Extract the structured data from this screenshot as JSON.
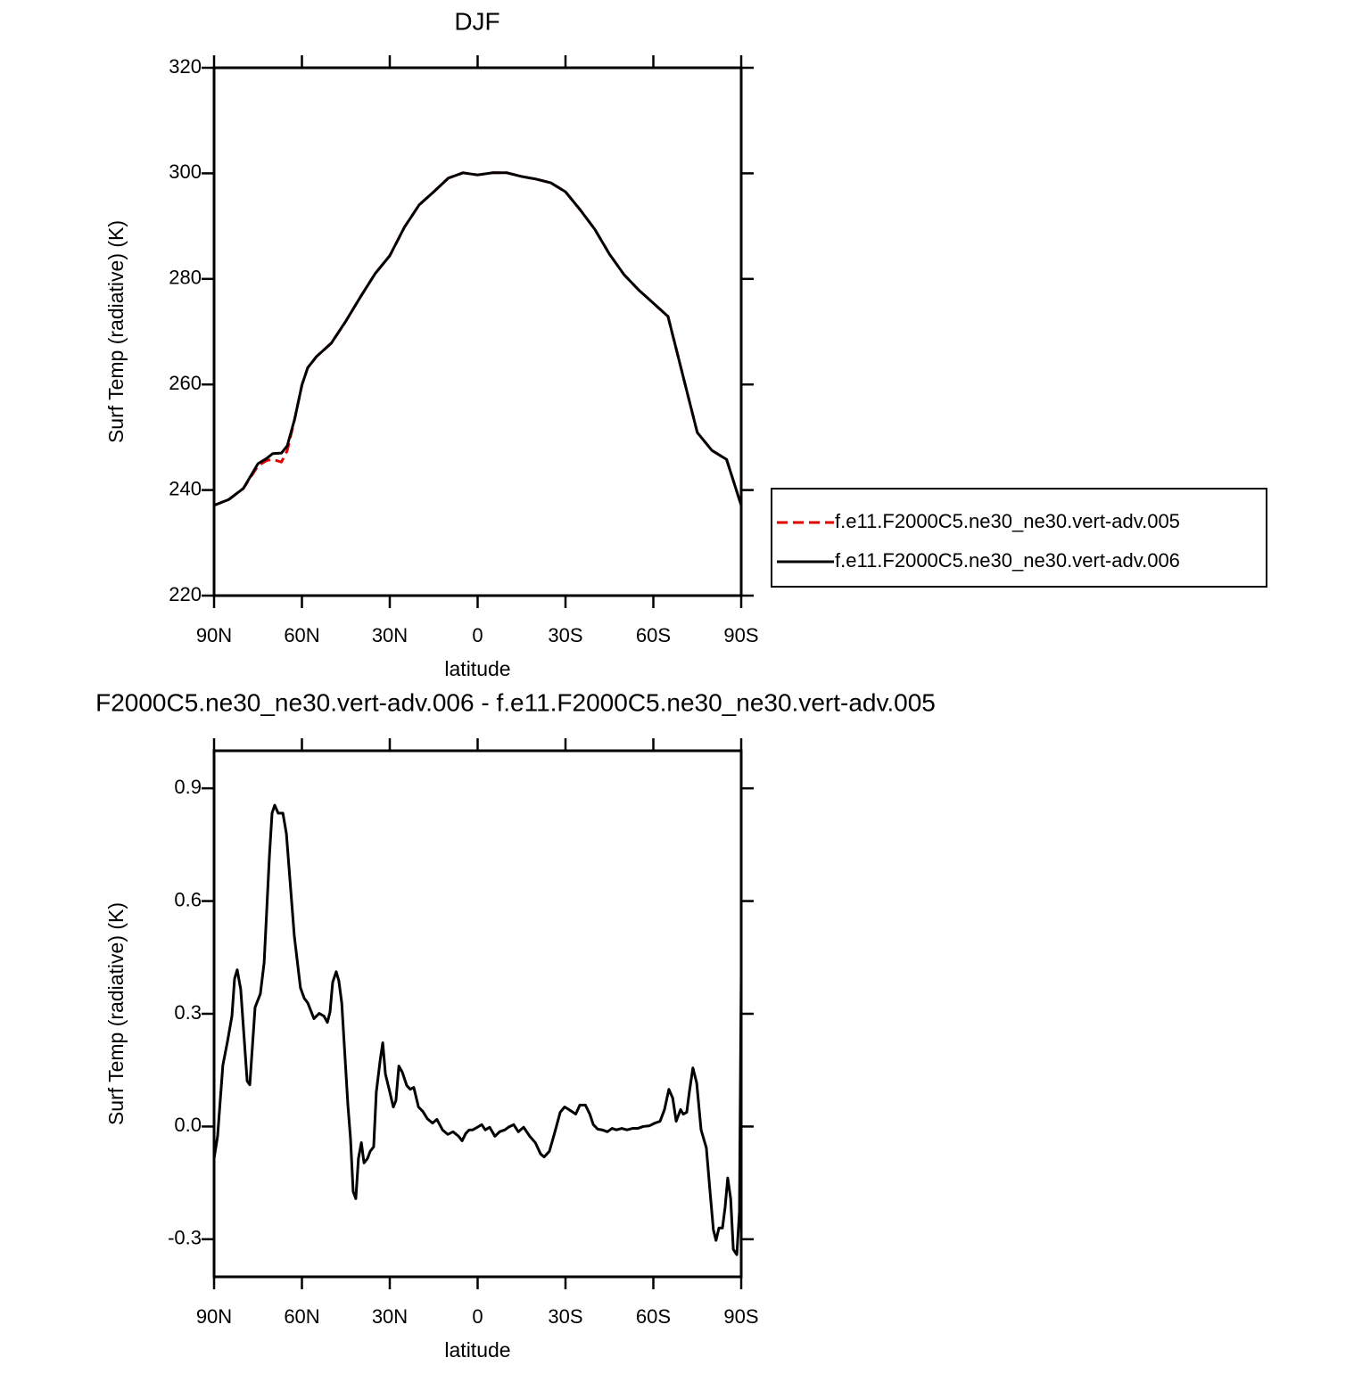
{
  "chart_data": [
    {
      "type": "line",
      "title": "DJF",
      "y_label": "Surf Temp (radiative) (K)",
      "x_label": "latitude",
      "x": [
        90,
        85,
        80,
        75,
        72,
        70,
        67,
        65,
        62.5,
        60,
        58,
        55,
        50,
        45,
        40,
        35,
        30,
        25,
        20,
        15,
        10,
        5,
        0,
        -5,
        -10,
        -15,
        -20,
        -25,
        -30,
        -35,
        -40,
        -45,
        -50,
        -55,
        -60,
        -65,
        -70,
        -75,
        -80,
        -85,
        -90
      ],
      "series": [
        {
          "name": "f.e11.F2000C5.ne30_ne30.vert-adv.005",
          "color": "#e00000",
          "line_style": "dashed",
          "values": [
            237.1,
            238.2,
            240.3,
            244.6,
            245.6,
            245.8,
            245.3,
            247.5,
            253.4,
            259.9,
            263.2,
            265.3,
            267.8,
            272.0,
            276.6,
            281.0,
            284.4,
            289.8,
            294.0,
            296.5,
            299.1,
            300.1,
            299.7,
            300.1,
            300.1,
            299.4,
            298.9,
            298.2,
            296.5,
            293.1,
            289.4,
            284.7,
            280.8,
            277.9,
            275.4,
            272.9,
            261.9,
            250.9,
            247.5,
            245.8,
            237.1
          ]
        },
        {
          "name": "f.e11.F2000C5.ne30_ne30.vert-adv.006",
          "color": "#000000",
          "line_style": "solid",
          "values": [
            237.1,
            238.2,
            240.3,
            245.0,
            246.0,
            246.9,
            247.0,
            248.4,
            253.4,
            259.9,
            263.2,
            265.3,
            267.8,
            272.0,
            276.6,
            281.0,
            284.4,
            289.8,
            294.0,
            296.5,
            299.1,
            300.1,
            299.7,
            300.1,
            300.1,
            299.4,
            298.9,
            298.2,
            296.5,
            293.1,
            289.4,
            284.7,
            280.8,
            277.9,
            275.4,
            272.9,
            261.9,
            250.9,
            247.5,
            245.8,
            237.1
          ]
        }
      ],
      "xlim": [
        90,
        -90
      ],
      "xticks": [
        {
          "value": 90,
          "label": "90N"
        },
        {
          "value": 60,
          "label": "60N"
        },
        {
          "value": 30,
          "label": "30N"
        },
        0,
        {
          "value": -30,
          "label": "30S"
        },
        {
          "value": -60,
          "label": "60S"
        },
        {
          "value": -90,
          "label": "90S"
        }
      ],
      "ylim": [
        220,
        320
      ],
      "yticks": [
        220,
        240,
        260,
        280,
        300,
        320
      ],
      "legend": "right"
    },
    {
      "type": "line",
      "title": "F2000C5.ne30_ne30.vert-adv.006 - f.e11.F2000C5.ne30_ne30.vert-adv.005",
      "y_label": "Surf Temp (radiative) (K)",
      "x_label": "latitude",
      "x": [
        90,
        88.8,
        87.0,
        85.4,
        83.9,
        83.0,
        82.1,
        80.9,
        78.7,
        77.8,
        76.0,
        74.2,
        72.9,
        71.1,
        70.2,
        69.3,
        68.1,
        66.5,
        65.3,
        62.6,
        60.5,
        59.2,
        58.0,
        55.9,
        54.1,
        52.5,
        51.3,
        50.4,
        49.5,
        48.3,
        47.4,
        46.4,
        44.3,
        43.4,
        42.5,
        41.6,
        40.7,
        39.7,
        38.8,
        37.6,
        36.7,
        35.5,
        34.6,
        33.3,
        32.4,
        31.5,
        30.0,
        28.8,
        27.9,
        26.9,
        25.7,
        24.2,
        23.0,
        21.8,
        20.2,
        18.7,
        17.2,
        15.4,
        13.9,
        12.0,
        10.2,
        8.4,
        6.5,
        5.3,
        4.1,
        2.9,
        1.7,
        0.1,
        -1.4,
        -2.6,
        -4.1,
        -5.9,
        -7.5,
        -9.3,
        -10.5,
        -12.3,
        -13.9,
        -15.7,
        -17.8,
        -19.7,
        -21.5,
        -22.7,
        -24.5,
        -26.4,
        -28.2,
        -29.7,
        -31.2,
        -33.5,
        -34.9,
        -36.8,
        -38.3,
        -39.5,
        -41.0,
        -42.5,
        -44.3,
        -45.9,
        -47.4,
        -49.2,
        -51.0,
        -52.9,
        -54.7,
        -56.5,
        -58.7,
        -60.5,
        -62.3,
        -63.8,
        -65.3,
        -66.6,
        -67.8,
        -69.3,
        -70.2,
        -71.4,
        -72.3,
        -73.5,
        -74.8,
        -76.3,
        -78.1,
        -79.3,
        -80.5,
        -81.4,
        -82.4,
        -83.6,
        -84.5,
        -85.4,
        -86.4,
        -87.3,
        -88.5,
        -89.4,
        -90
      ],
      "series": [
        {
          "color": "#000000",
          "line_style": "solid",
          "values": [
            -0.085,
            -0.026,
            0.163,
            0.227,
            0.294,
            0.393,
            0.417,
            0.365,
            0.121,
            0.111,
            0.317,
            0.353,
            0.436,
            0.72,
            0.834,
            0.855,
            0.834,
            0.834,
            0.779,
            0.507,
            0.369,
            0.341,
            0.329,
            0.287,
            0.301,
            0.294,
            0.277,
            0.305,
            0.384,
            0.412,
            0.388,
            0.329,
            0.057,
            -0.033,
            -0.173,
            -0.192,
            -0.085,
            -0.043,
            -0.097,
            -0.085,
            -0.066,
            -0.054,
            0.092,
            0.175,
            0.223,
            0.14,
            0.092,
            0.052,
            0.069,
            0.161,
            0.144,
            0.109,
            0.099,
            0.104,
            0.052,
            0.04,
            0.021,
            0.009,
            0.019,
            -0.009,
            -0.021,
            -0.014,
            -0.026,
            -0.038,
            -0.019,
            -0.009,
            -0.009,
            -0.002,
            0.005,
            -0.009,
            -0.002,
            -0.026,
            -0.014,
            -0.009,
            -0.002,
            0.005,
            -0.014,
            -0.002,
            -0.026,
            -0.043,
            -0.073,
            -0.081,
            -0.066,
            -0.014,
            0.038,
            0.052,
            0.045,
            0.033,
            0.057,
            0.057,
            0.033,
            0.005,
            -0.007,
            -0.009,
            -0.014,
            -0.005,
            -0.009,
            -0.005,
            -0.009,
            -0.005,
            -0.005,
            0,
            0.002,
            0.009,
            0.014,
            0.045,
            0.099,
            0.076,
            0.014,
            0.045,
            0.033,
            0.038,
            0.092,
            0.156,
            0.116,
            -0.009,
            -0.057,
            -0.168,
            -0.275,
            -0.303,
            -0.27,
            -0.27,
            -0.215,
            -0.137,
            -0.192,
            -0.327,
            -0.341,
            -0.227,
            0.4
          ]
        }
      ],
      "xlim": [
        90,
        -90
      ],
      "xticks": [
        {
          "value": 90,
          "label": "90N"
        },
        {
          "value": 60,
          "label": "60N"
        },
        {
          "value": 30,
          "label": "30N"
        },
        0,
        {
          "value": -30,
          "label": "30S"
        },
        {
          "value": -60,
          "label": "60S"
        },
        {
          "value": -90,
          "label": "90S"
        }
      ],
      "ylim": [
        -0.4,
        1.0
      ],
      "yticks": [
        -0.3,
        {
          "value": 0,
          "label": "0.0"
        },
        0.3,
        0.6,
        0.9
      ]
    }
  ]
}
